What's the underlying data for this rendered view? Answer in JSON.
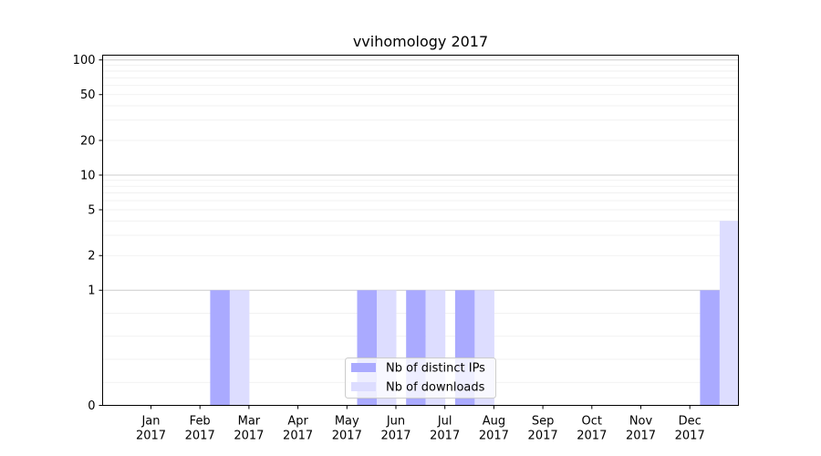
{
  "chart_data": {
    "type": "bar",
    "title": "vvihomology 2017",
    "xlabel": "",
    "ylabel": "",
    "y_scale": "symlog",
    "y_ticks": [
      0,
      1,
      2,
      5,
      10,
      20,
      50,
      100
    ],
    "ylim": [
      0,
      110
    ],
    "grid": true,
    "legend_position": "bottom-center",
    "categories": [
      [
        "Jan",
        "2017"
      ],
      [
        "Feb",
        "2017"
      ],
      [
        "Mar",
        "2017"
      ],
      [
        "Apr",
        "2017"
      ],
      [
        "May",
        "2017"
      ],
      [
        "Jun",
        "2017"
      ],
      [
        "Jul",
        "2017"
      ],
      [
        "Aug",
        "2017"
      ],
      [
        "Sep",
        "2017"
      ],
      [
        "Oct",
        "2017"
      ],
      [
        "Nov",
        "2017"
      ],
      [
        "Dec",
        "2017"
      ]
    ],
    "series": [
      {
        "name": "Nb of distinct IPs",
        "color": "#aaaaff",
        "values": [
          0,
          1,
          0,
          0,
          1,
          1,
          1,
          0,
          0,
          0,
          0,
          1
        ]
      },
      {
        "name": "Nb of downloads",
        "color": "#ddddff",
        "values": [
          0,
          1,
          0,
          0,
          1,
          1,
          1,
          0,
          0,
          0,
          0,
          4
        ]
      }
    ]
  }
}
